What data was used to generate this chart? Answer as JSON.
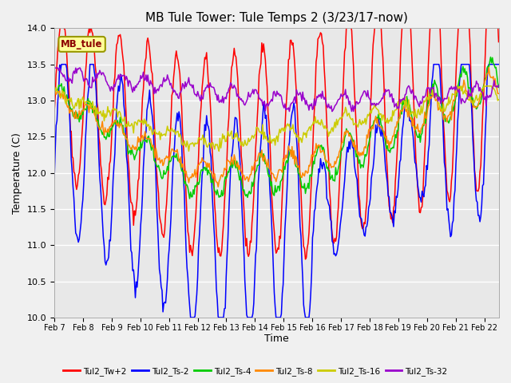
{
  "title": "MB Tule Tower: Tule Temps 2 (3/23/17-now)",
  "xlabel": "Time",
  "ylabel": "Temperature (C)",
  "ylim": [
    10.0,
    14.0
  ],
  "yticks": [
    10.0,
    10.5,
    11.0,
    11.5,
    12.0,
    12.5,
    13.0,
    13.5,
    14.0
  ],
  "xlim": [
    0,
    15.5
  ],
  "xtick_labels": [
    "Feb 7",
    "Feb 8",
    "Feb 9",
    "Feb 10",
    "Feb 11",
    "Feb 12",
    "Feb 13",
    "Feb 14",
    "Feb 15",
    "Feb 16",
    "Feb 17",
    "Feb 18",
    "Feb 19",
    "Feb 20",
    "Feb 21",
    "Feb 22"
  ],
  "xtick_positions": [
    0,
    1,
    2,
    3,
    4,
    5,
    6,
    7,
    8,
    9,
    10,
    11,
    12,
    13,
    14,
    15
  ],
  "background_color": "#f0f0f0",
  "plot_bg_color": "#e8e8e8",
  "series_colors": {
    "Tul2_Tw+2": "#ff0000",
    "Tul2_Ts-2": "#0000ff",
    "Tul2_Ts-4": "#00cc00",
    "Tul2_Ts-8": "#ff8800",
    "Tul2_Ts-16": "#cccc00",
    "Tul2_Ts-32": "#9900cc"
  },
  "legend_label": "MB_tule",
  "title_fontsize": 11,
  "axis_fontsize": 9
}
